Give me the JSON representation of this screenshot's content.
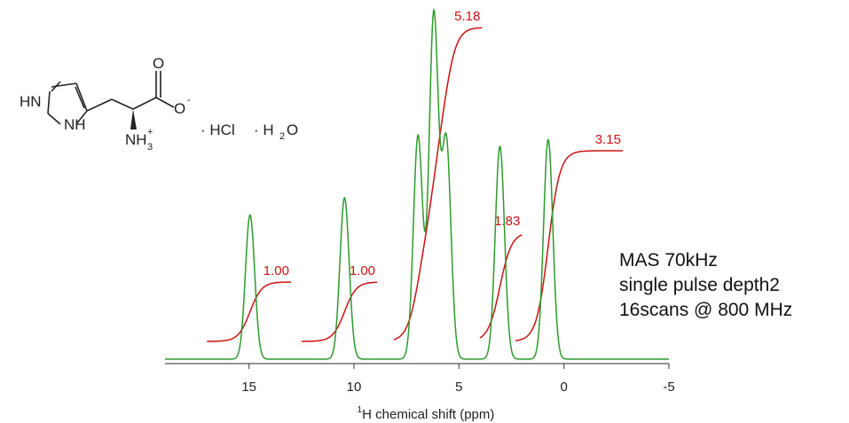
{
  "chart_data": {
    "type": "line",
    "xlabel_sup": "1",
    "xlabel_main": "H chemical shift (ppm)",
    "xlim": [
      19,
      -5
    ],
    "x_ticks": [
      15,
      10,
      5,
      0,
      -5
    ],
    "x_tick_labels": [
      "15",
      "10",
      "5",
      "0",
      "-5"
    ],
    "spectrum_color": "#2e9a2e",
    "integral_color": "#cc1111",
    "series": [
      {
        "peaks": [
          {
            "center": 14.95,
            "height": 0.42
          },
          {
            "center": 10.45,
            "height": 0.47
          },
          {
            "center": 6.95,
            "height": 0.65
          },
          {
            "center": 6.2,
            "height": 1.0
          },
          {
            "center": 5.6,
            "height": 0.63
          },
          {
            "center": 3.05,
            "height": 0.62
          },
          {
            "center": 0.75,
            "height": 0.64
          }
        ]
      }
    ],
    "integrals": [
      {
        "label": "1.00",
        "x_start": 17.0,
        "x_end": 13.0,
        "step": [
          14.95
        ]
      },
      {
        "label": "1.00",
        "x_start": 12.5,
        "x_end": 8.9,
        "step": [
          10.45
        ]
      },
      {
        "label": "5.18",
        "x_start": 8.1,
        "x_end": 3.9,
        "step": [
          6.95,
          6.2,
          5.6
        ]
      },
      {
        "label": "1.83",
        "x_start": 4.0,
        "x_end": 2.0,
        "step": [
          3.05
        ]
      },
      {
        "label": "3.15",
        "x_start": 2.3,
        "x_end": -2.8,
        "step": [
          0.75
        ]
      }
    ]
  },
  "annotation": {
    "line1": "MAS 70kHz",
    "line2": "single pulse depth2",
    "line3": "16scans @ 800 MHz"
  },
  "molecule": {
    "hn": "HN",
    "nh": "NH",
    "nh3": "NH",
    "nh3_sub": "3",
    "nh3_sup": "+",
    "o_top": "O",
    "o_minus": "O",
    "o_minus_sup": "-",
    "hcl": "· HCl",
    "h2o_dot": "· H",
    "h2o_sub": "2",
    "h2o_o": "O"
  }
}
